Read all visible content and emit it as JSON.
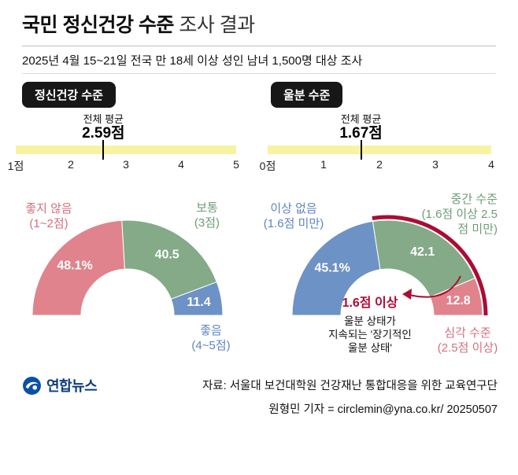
{
  "header": {
    "title_bold": "국민 정신건강 수준",
    "title_regular": " 조사 결과",
    "subtitle": "2025년 4월 15~21일 전국 만 18세 이상 성인 남녀 1,500명 대상 조사"
  },
  "colors": {
    "yellow": "#f8f3a2",
    "red": "#e0838c",
    "green": "#84aa87",
    "blue": "#6d92c6",
    "dark_red": "#ab0c35",
    "red_text": "#d56f7c",
    "green_text": "#6e9d76",
    "blue_text": "#5d86c0",
    "badge_bg": "#171717",
    "navy": "#0a3d7e"
  },
  "chart_data": [
    {
      "type": "pie",
      "subtype": "half-donut-gauge",
      "title": "정신건강 수준",
      "average_label": "전체 평균",
      "average_value": "2.59점",
      "average_numeric": 2.59,
      "scale": {
        "min": 1,
        "max": 5,
        "ticks": [
          "1점",
          "2",
          "3",
          "4",
          "5"
        ]
      },
      "segments": [
        {
          "label": "좋지 않음",
          "sublabel": "(1~2점)",
          "value": 48.1,
          "display": "48.1%",
          "color_key": "red"
        },
        {
          "label": "보통",
          "sublabel": "(3점)",
          "value": 40.5,
          "display": "40.5",
          "color_key": "green"
        },
        {
          "label": "좋음",
          "sublabel": "(4~5점)",
          "value": 11.4,
          "display": "11.4",
          "color_key": "blue"
        }
      ]
    },
    {
      "type": "pie",
      "subtype": "half-donut-gauge",
      "title": "울분 수준",
      "average_label": "전체 평균",
      "average_value": "1.67점",
      "average_numeric": 1.67,
      "scale": {
        "min": 0,
        "max": 4,
        "ticks": [
          "0점",
          "1",
          "2",
          "3",
          "4"
        ]
      },
      "segments": [
        {
          "label": "이상 없음",
          "sublabel": "(1.6점 미만)",
          "value": 45.1,
          "display": "45.1%",
          "color_key": "blue"
        },
        {
          "label": "중간 수준",
          "sublabel": "(1.6점 이상 2.5점 미만)",
          "value": 42.1,
          "display": "42.1",
          "color_key": "green"
        },
        {
          "label": "심각 수준",
          "sublabel": "(2.5점 이상)",
          "value": 12.8,
          "display": "12.8",
          "color_key": "red"
        }
      ],
      "annotation": {
        "highlight_label": "1.6점 이상",
        "lines": [
          "울분 상태가",
          "지속되는 '장기적인",
          "울분 상태'"
        ]
      }
    }
  ],
  "footer": {
    "logo_text": "연합뉴스",
    "source": "자료: 서울대 보건대학원 건강재난 통합대응을 위한 교육연구단",
    "credit": "원형민 기자 = circlemin@yna.co.kr/ 20250507"
  }
}
